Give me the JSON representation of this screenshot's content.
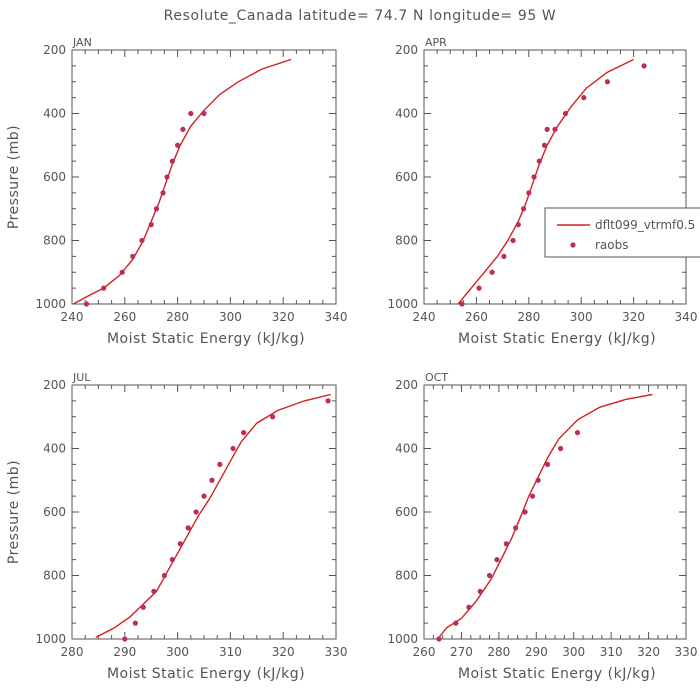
{
  "title": "Resolute_Canada  latitude= 74.7 N longitude= 95 W",
  "colors": {
    "series": "#d42020",
    "obs": "#b8305a",
    "axis": "#555555"
  },
  "legend": {
    "placement": "right-middle of APR panel",
    "items": [
      "dflt099_vtrmf0.5",
      "raobs"
    ]
  },
  "chart_data": [
    {
      "type": "line+scatter",
      "title": "JAN",
      "xlabel": "Moist Static Energy (kJ/kg)",
      "ylabel": "Pressure (mb)",
      "xlim": [
        240,
        340
      ],
      "ylim": [
        1000,
        200
      ],
      "xticks": [
        240,
        260,
        280,
        300,
        320,
        340
      ],
      "yticks": [
        200,
        400,
        600,
        800,
        1000
      ],
      "series": [
        {
          "name": "dflt099_vtrmf0.5",
          "kind": "line",
          "x": [
            240.5,
            246,
            252,
            258,
            263,
            267,
            270,
            273,
            275.5,
            278,
            281,
            285,
            290,
            296,
            303,
            312,
            323
          ],
          "y": [
            1000,
            975,
            950,
            910,
            860,
            800,
            740,
            680,
            620,
            560,
            500,
            440,
            390,
            340,
            300,
            260,
            230
          ]
        },
        {
          "name": "raobs",
          "kind": "scatter",
          "x": [
            245.5,
            252,
            259,
            263,
            266.5,
            270,
            272,
            274.5,
            276,
            278,
            280,
            282,
            285,
            290
          ],
          "y": [
            1000,
            950,
            900,
            850,
            800,
            750,
            700,
            650,
            600,
            550,
            500,
            450,
            400,
            400
          ]
        }
      ]
    },
    {
      "type": "line+scatter",
      "title": "APR",
      "xlabel": "Moist Static Energy (kJ/kg)",
      "ylabel": "",
      "xlim": [
        240,
        340
      ],
      "ylim": [
        1000,
        200
      ],
      "xticks": [
        240,
        260,
        280,
        300,
        320,
        340
      ],
      "yticks": [
        200,
        400,
        600,
        800,
        1000
      ],
      "series": [
        {
          "name": "dflt099_vtrmf0.5",
          "kind": "line",
          "x": [
            253,
            258,
            263,
            268,
            272,
            276,
            279,
            281.5,
            284,
            287,
            291,
            296,
            302,
            310,
            320
          ],
          "y": [
            1000,
            950,
            900,
            850,
            800,
            740,
            680,
            620,
            560,
            500,
            440,
            380,
            320,
            270,
            230
          ]
        },
        {
          "name": "raobs",
          "kind": "scatter",
          "x": [
            254.5,
            261,
            266,
            270.5,
            274,
            276,
            278,
            280,
            282,
            284,
            286,
            287,
            290,
            294,
            301,
            310,
            324
          ],
          "y": [
            1000,
            950,
            900,
            850,
            800,
            750,
            700,
            650,
            600,
            550,
            500,
            450,
            450,
            400,
            350,
            300,
            250
          ]
        }
      ]
    },
    {
      "type": "line+scatter",
      "title": "JUL",
      "xlabel": "Moist Static Energy (kJ/kg)",
      "ylabel": "Pressure (mb)",
      "xlim": [
        280,
        330
      ],
      "ylim": [
        1000,
        200
      ],
      "xticks": [
        280,
        290,
        300,
        310,
        320,
        330
      ],
      "yticks": [
        200,
        400,
        600,
        800,
        1000
      ],
      "series": [
        {
          "name": "dflt099_vtrmf0.5",
          "kind": "line",
          "x": [
            284.5,
            288,
            291,
            293.5,
            296,
            298,
            300,
            302,
            304,
            306,
            308,
            310,
            312,
            315,
            319,
            324,
            329
          ],
          "y": [
            995,
            965,
            930,
            890,
            850,
            790,
            730,
            670,
            610,
            560,
            500,
            440,
            380,
            320,
            280,
            250,
            230
          ]
        },
        {
          "name": "raobs",
          "kind": "scatter",
          "x": [
            290,
            292,
            293.5,
            295.5,
            297.5,
            299,
            300.5,
            302,
            303.5,
            305,
            306.5,
            308,
            310.5,
            312.5,
            318,
            328.5
          ],
          "y": [
            1000,
            950,
            900,
            850,
            800,
            750,
            700,
            650,
            600,
            550,
            500,
            450,
            400,
            350,
            300,
            250
          ]
        }
      ]
    },
    {
      "type": "line+scatter",
      "title": "OCT",
      "xlabel": "Moist Static Energy (kJ/kg)",
      "ylabel": "",
      "xlim": [
        260,
        330
      ],
      "ylim": [
        1000,
        200
      ],
      "xticks": [
        260,
        270,
        280,
        290,
        300,
        310,
        320,
        330
      ],
      "yticks": [
        200,
        400,
        600,
        800,
        1000
      ],
      "series": [
        {
          "name": "dflt099_vtrmf0.5",
          "kind": "line",
          "x": [
            264,
            266,
            270,
            274,
            278,
            281,
            283.5,
            286,
            288,
            290.5,
            293,
            296,
            301,
            307,
            314,
            321
          ],
          "y": [
            995,
            965,
            935,
            880,
            810,
            740,
            680,
            610,
            550,
            490,
            430,
            370,
            310,
            270,
            245,
            230
          ]
        },
        {
          "name": "raobs",
          "kind": "scatter",
          "x": [
            264,
            268.5,
            272,
            275,
            277.5,
            279.5,
            282,
            284.5,
            287,
            289,
            290.5,
            293,
            296.5,
            301
          ],
          "y": [
            1000,
            950,
            900,
            850,
            800,
            750,
            700,
            650,
            600,
            550,
            500,
            450,
            400,
            350
          ]
        }
      ]
    }
  ]
}
